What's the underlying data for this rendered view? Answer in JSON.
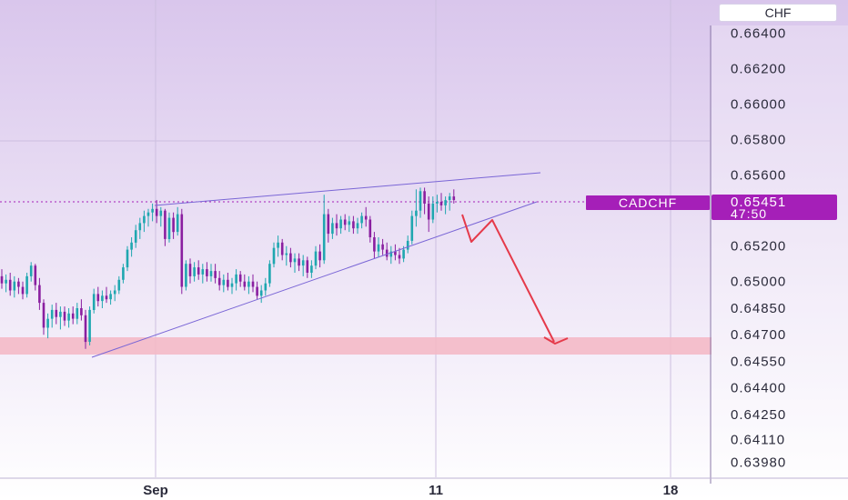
{
  "currency_label": "CHF",
  "symbol_tag": "CADCHF",
  "current_price_label": "0.65451",
  "countdown": "47:50",
  "colors": {
    "background_top": "#d9c6ec",
    "background_bottom": "#ffffff",
    "accent": "#a51fb8",
    "candle_up": "#1fa7b0",
    "candle_down": "#8a1fa0",
    "trendline": "#7a66d6",
    "projection_arrow": "#e53a4a",
    "support_zone": "#f4b9c6"
  },
  "chart_data": {
    "type": "candlestick",
    "symbol": "CADCHF",
    "quote_currency": "CHF",
    "y_axis_ticks": [
      0.664,
      0.662,
      0.66,
      0.658,
      0.656,
      0.6545,
      0.652,
      0.65,
      0.6485,
      0.647,
      0.6455,
      0.644,
      0.6425,
      0.6411,
      0.6398
    ],
    "y_tick_labels": [
      "0.66400",
      "0.66200",
      "0.66000",
      "0.65800",
      "0.65600",
      "0.65451",
      "0.65200",
      "0.65000",
      "0.64850",
      "0.64700",
      "0.64550",
      "0.64400",
      "0.64250",
      "0.64110",
      "0.63980"
    ],
    "x_tick_labels": [
      "Sep",
      "11",
      "18"
    ],
    "current_price": 0.65451,
    "support_zone": [
      0.6465,
      0.6475
    ],
    "candles": [
      [
        0.6503,
        0.6507,
        0.6496,
        0.6499
      ],
      [
        0.6499,
        0.6504,
        0.6494,
        0.6501
      ],
      [
        0.6501,
        0.6505,
        0.6492,
        0.6495
      ],
      [
        0.6495,
        0.6503,
        0.6491,
        0.65
      ],
      [
        0.65,
        0.6502,
        0.6493,
        0.6497
      ],
      [
        0.6497,
        0.65,
        0.649,
        0.6493
      ],
      [
        0.6493,
        0.6505,
        0.6491,
        0.6503
      ],
      [
        0.6503,
        0.6511,
        0.65,
        0.6509
      ],
      [
        0.6509,
        0.651,
        0.6495,
        0.6498
      ],
      [
        0.6498,
        0.6502,
        0.6484,
        0.6488
      ],
      [
        0.6488,
        0.649,
        0.647,
        0.6474
      ],
      [
        0.6474,
        0.6482,
        0.6468,
        0.6479
      ],
      [
        0.6479,
        0.6487,
        0.6474,
        0.6484
      ],
      [
        0.6484,
        0.6488,
        0.6476,
        0.648
      ],
      [
        0.648,
        0.6486,
        0.6473,
        0.6483
      ],
      [
        0.6483,
        0.6486,
        0.6475,
        0.6478
      ],
      [
        0.6478,
        0.6485,
        0.6474,
        0.6482
      ],
      [
        0.6482,
        0.6486,
        0.6476,
        0.6479
      ],
      [
        0.6479,
        0.6488,
        0.6476,
        0.6485
      ],
      [
        0.6485,
        0.649,
        0.6478,
        0.6481
      ],
      [
        0.6481,
        0.6484,
        0.6462,
        0.6466
      ],
      [
        0.6466,
        0.6486,
        0.6464,
        0.6484
      ],
      [
        0.6484,
        0.6496,
        0.6482,
        0.6493
      ],
      [
        0.6493,
        0.6497,
        0.6486,
        0.6489
      ],
      [
        0.6489,
        0.6495,
        0.6485,
        0.6492
      ],
      [
        0.6492,
        0.6497,
        0.6488,
        0.649
      ],
      [
        0.649,
        0.6495,
        0.6487,
        0.6493
      ],
      [
        0.6493,
        0.6498,
        0.6489,
        0.6495
      ],
      [
        0.6495,
        0.6503,
        0.6493,
        0.6501
      ],
      [
        0.6501,
        0.651,
        0.6499,
        0.6508
      ],
      [
        0.6508,
        0.652,
        0.6506,
        0.6518
      ],
      [
        0.6518,
        0.6525,
        0.6514,
        0.6522
      ],
      [
        0.6522,
        0.6532,
        0.6519,
        0.6529
      ],
      [
        0.6529,
        0.6536,
        0.6524,
        0.6533
      ],
      [
        0.6533,
        0.654,
        0.6528,
        0.6537
      ],
      [
        0.6537,
        0.6541,
        0.6531,
        0.6539
      ],
      [
        0.6539,
        0.6544,
        0.6534,
        0.6541
      ],
      [
        0.6541,
        0.6546,
        0.6533,
        0.6537
      ],
      [
        0.6537,
        0.6542,
        0.6531,
        0.654
      ],
      [
        0.654,
        0.6541,
        0.652,
        0.6524
      ],
      [
        0.6524,
        0.6539,
        0.6522,
        0.6536
      ],
      [
        0.6536,
        0.6539,
        0.6524,
        0.6528
      ],
      [
        0.6528,
        0.6542,
        0.6526,
        0.6538
      ],
      [
        0.6538,
        0.6541,
        0.6493,
        0.6497
      ],
      [
        0.6497,
        0.6512,
        0.6495,
        0.651
      ],
      [
        0.651,
        0.6513,
        0.6499,
        0.6503
      ],
      [
        0.6503,
        0.6511,
        0.65,
        0.6508
      ],
      [
        0.6508,
        0.6512,
        0.6501,
        0.6504
      ],
      [
        0.6504,
        0.651,
        0.6499,
        0.6507
      ],
      [
        0.6507,
        0.6511,
        0.65,
        0.6503
      ],
      [
        0.6503,
        0.651,
        0.65,
        0.6506
      ],
      [
        0.6506,
        0.651,
        0.6499,
        0.6502
      ],
      [
        0.6502,
        0.6506,
        0.6495,
        0.6498
      ],
      [
        0.6498,
        0.6504,
        0.6494,
        0.6501
      ],
      [
        0.6501,
        0.6505,
        0.6495,
        0.6497
      ],
      [
        0.6497,
        0.6502,
        0.6493,
        0.6499
      ],
      [
        0.6499,
        0.6507,
        0.6495,
        0.6504
      ],
      [
        0.6504,
        0.6506,
        0.6497,
        0.65
      ],
      [
        0.65,
        0.6504,
        0.6495,
        0.6497
      ],
      [
        0.6497,
        0.6503,
        0.6493,
        0.65
      ],
      [
        0.65,
        0.6504,
        0.6494,
        0.6497
      ],
      [
        0.6497,
        0.65,
        0.649,
        0.6492
      ],
      [
        0.6492,
        0.6498,
        0.6488,
        0.6495
      ],
      [
        0.6495,
        0.6502,
        0.6492,
        0.6499
      ],
      [
        0.6499,
        0.6512,
        0.6497,
        0.651
      ],
      [
        0.651,
        0.6522,
        0.6508,
        0.6519
      ],
      [
        0.6519,
        0.6526,
        0.6514,
        0.6522
      ],
      [
        0.6522,
        0.6524,
        0.6512,
        0.6515
      ],
      [
        0.6515,
        0.652,
        0.6509,
        0.6516
      ],
      [
        0.6516,
        0.6519,
        0.6508,
        0.6511
      ],
      [
        0.6511,
        0.6516,
        0.6505,
        0.6513
      ],
      [
        0.6513,
        0.6516,
        0.6506,
        0.6509
      ],
      [
        0.6509,
        0.6515,
        0.6503,
        0.6512
      ],
      [
        0.6512,
        0.6514,
        0.6502,
        0.6505
      ],
      [
        0.6505,
        0.6512,
        0.6502,
        0.6509
      ],
      [
        0.6509,
        0.652,
        0.6507,
        0.6517
      ],
      [
        0.6517,
        0.6521,
        0.6508,
        0.6512
      ],
      [
        0.6512,
        0.6549,
        0.651,
        0.6538
      ],
      [
        0.6538,
        0.6541,
        0.6522,
        0.6527
      ],
      [
        0.6527,
        0.6536,
        0.6524,
        0.6533
      ],
      [
        0.6533,
        0.6538,
        0.6526,
        0.653
      ],
      [
        0.653,
        0.6537,
        0.6527,
        0.6535
      ],
      [
        0.6535,
        0.6538,
        0.6529,
        0.6532
      ],
      [
        0.6532,
        0.6537,
        0.6528,
        0.6534
      ],
      [
        0.6534,
        0.6537,
        0.6527,
        0.653
      ],
      [
        0.653,
        0.6536,
        0.6527,
        0.6533
      ],
      [
        0.6533,
        0.6539,
        0.653,
        0.6537
      ],
      [
        0.6537,
        0.6542,
        0.6531,
        0.6535
      ],
      [
        0.6535,
        0.6537,
        0.6522,
        0.6525
      ],
      [
        0.6525,
        0.6528,
        0.6513,
        0.6517
      ],
      [
        0.6517,
        0.6525,
        0.6514,
        0.6521
      ],
      [
        0.6521,
        0.6524,
        0.6515,
        0.6518
      ],
      [
        0.6518,
        0.6522,
        0.6512,
        0.6514
      ],
      [
        0.6514,
        0.652,
        0.651,
        0.6517
      ],
      [
        0.6517,
        0.6521,
        0.6512,
        0.6515
      ],
      [
        0.6515,
        0.6519,
        0.651,
        0.6513
      ],
      [
        0.6513,
        0.652,
        0.6511,
        0.6518
      ],
      [
        0.6518,
        0.6526,
        0.6516,
        0.6523
      ],
      [
        0.6523,
        0.654,
        0.6521,
        0.6537
      ],
      [
        0.6537,
        0.6552,
        0.6531,
        0.654
      ],
      [
        0.654,
        0.6553,
        0.6536,
        0.6551
      ],
      [
        0.6551,
        0.6553,
        0.6538,
        0.6544
      ],
      [
        0.6544,
        0.6548,
        0.6528,
        0.6535
      ],
      [
        0.6535,
        0.6548,
        0.6533,
        0.6544
      ],
      [
        0.6544,
        0.6549,
        0.6539,
        0.6545
      ],
      [
        0.6545,
        0.655,
        0.654,
        0.6543
      ],
      [
        0.6543,
        0.6548,
        0.6538,
        0.6546
      ],
      [
        0.6546,
        0.655,
        0.654,
        0.6548
      ],
      [
        0.6548,
        0.6552,
        0.6544,
        0.6546
      ]
    ],
    "trendlines": [
      {
        "role": "upper",
        "from": [
          0.0,
          0.65435
        ],
        "to": [
          1.0,
          0.65595
        ]
      },
      {
        "role": "lower",
        "from": [
          0.0,
          0.6457
        ],
        "to": [
          1.0,
          0.65455
        ]
      }
    ]
  }
}
